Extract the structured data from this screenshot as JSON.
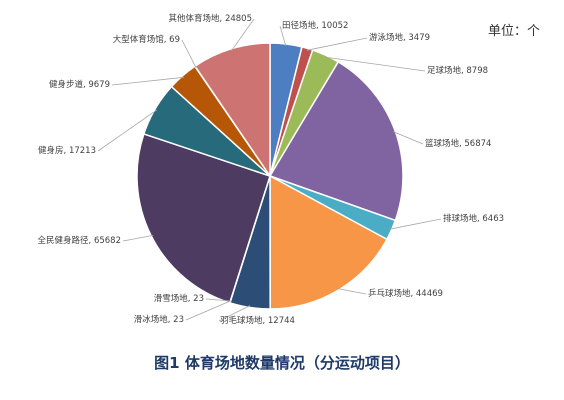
{
  "unit_label": "单位：个",
  "caption": "图1  体育场地数量情况（分运动项目）",
  "chart_data": {
    "type": "pie",
    "title": "",
    "slices": [
      {
        "label": "田径场地",
        "value": 10052,
        "color": "#4e7ec2"
      },
      {
        "label": "游泳场地",
        "value": 3479,
        "color": "#c0504d"
      },
      {
        "label": "足球场地",
        "value": 8798,
        "color": "#9bbb59"
      },
      {
        "label": "篮球场地",
        "value": 56874,
        "color": "#8064a2"
      },
      {
        "label": "排球场地",
        "value": 6463,
        "color": "#4bacc6"
      },
      {
        "label": "乒乓球场地",
        "value": 44469,
        "color": "#f79646"
      },
      {
        "label": "羽毛球场地",
        "value": 12744,
        "color": "#2c4d75"
      },
      {
        "label": "滑冰场地",
        "value": 23,
        "color": "#772c2a"
      },
      {
        "label": "滑雪场地",
        "value": 23,
        "color": "#5f7530"
      },
      {
        "label": "全民健身路径",
        "value": 65682,
        "color": "#4d3b62"
      },
      {
        "label": "健身房",
        "value": 17213,
        "color": "#276a7c"
      },
      {
        "label": "健身步道",
        "value": 9679,
        "color": "#b65708"
      },
      {
        "label": "大型体育场馆",
        "value": 69,
        "color": "#729aca"
      },
      {
        "label": "其他体育场地",
        "value": 24805,
        "color": "#cd7371"
      }
    ]
  }
}
